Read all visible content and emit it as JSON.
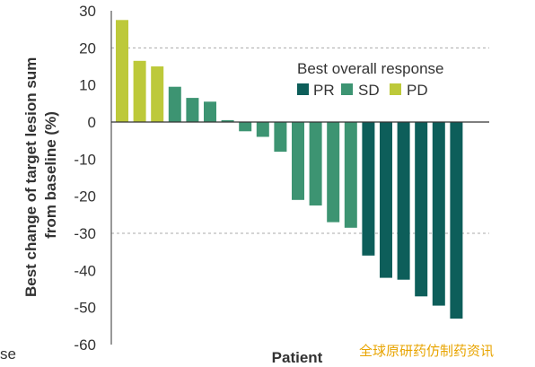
{
  "chart_data": {
    "type": "bar",
    "ylabel": "Best change of target lesion sum from baseline (%)",
    "ylabel_lines": [
      "Best change of target lesion sum",
      "from baseline (%)"
    ],
    "xlabel": "Patient",
    "ylim": [
      -60,
      30
    ],
    "yticks": [
      30,
      20,
      10,
      0,
      -10,
      -20,
      -30,
      -40,
      -50,
      -60
    ],
    "gridlines": [
      20,
      -30
    ],
    "legend": {
      "title": "Best overall response",
      "placement": "top-right",
      "entries": [
        {
          "name": "PR",
          "color": "#0d5e5a"
        },
        {
          "name": "SD",
          "color": "#3d9472"
        },
        {
          "name": "PD",
          "color": "#bdc93a"
        }
      ]
    },
    "bars": [
      {
        "value": 27.5,
        "response": "PD"
      },
      {
        "value": 16.5,
        "response": "PD"
      },
      {
        "value": 15,
        "response": "PD"
      },
      {
        "value": 9.5,
        "response": "SD"
      },
      {
        "value": 6.5,
        "response": "SD"
      },
      {
        "value": 5.5,
        "response": "SD"
      },
      {
        "value": 0.5,
        "response": "SD"
      },
      {
        "value": -2.5,
        "response": "SD"
      },
      {
        "value": -4,
        "response": "SD"
      },
      {
        "value": -8,
        "response": "SD"
      },
      {
        "value": -21,
        "response": "SD"
      },
      {
        "value": -22.5,
        "response": "SD"
      },
      {
        "value": -27,
        "response": "SD"
      },
      {
        "value": -28.5,
        "response": "SD"
      },
      {
        "value": -36,
        "response": "PR"
      },
      {
        "value": -42,
        "response": "PR"
      },
      {
        "value": -42.5,
        "response": "PR"
      },
      {
        "value": -47,
        "response": "PR"
      },
      {
        "value": -49.5,
        "response": "PR"
      },
      {
        "value": -53,
        "response": "PR"
      }
    ]
  },
  "cut_text": "se",
  "watermark": "全球原研药仿制药资讯"
}
